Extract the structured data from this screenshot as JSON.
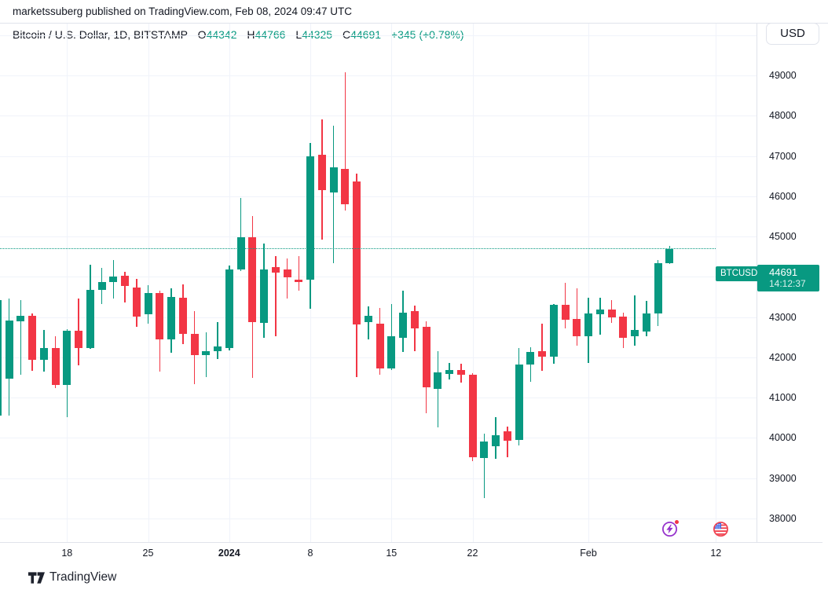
{
  "top_bar": {
    "attribution": "marketssuberg published on TradingView.com, Feb 08, 2024 09:47 UTC"
  },
  "header": {
    "symbol_title": "Bitcoin / U.S. Dollar, 1D, BITSTAMP",
    "ohlc": {
      "open_label": "O",
      "open": "44342",
      "high_label": "H",
      "high": "44766",
      "low_label": "L",
      "low": "44325",
      "close_label": "C",
      "close": "44691",
      "change": "+345 (+0.78%)"
    },
    "currency_button": "USD"
  },
  "chart_data": {
    "type": "candlestick",
    "symbol": "BTCUSD",
    "exchange": "BITSTAMP",
    "interval": "1D",
    "title": "Bitcoin / U.S. Dollar",
    "colors": {
      "up": "#089981",
      "down": "#f23645",
      "grid": "#f0f3fa",
      "price_line": "#089981"
    },
    "y_axis": {
      "tick_step": 1000,
      "labels": [
        49000,
        48000,
        47000,
        46000,
        45000,
        44000,
        43000,
        42000,
        41000,
        40000,
        39000,
        38000
      ],
      "gridline_prices": [
        50000,
        49000,
        48000,
        47000,
        46000,
        45000,
        44000,
        43000,
        42000,
        41000,
        40000,
        39000,
        38000
      ],
      "view_top_price": 50650,
      "view_bottom_price": 37350
    },
    "x_axis": {
      "ticks": [
        {
          "label": "18",
          "day": 5,
          "bold": false
        },
        {
          "label": "25",
          "day": 12,
          "bold": false
        },
        {
          "label": "2024",
          "day": 19,
          "bold": true
        },
        {
          "label": "8",
          "day": 26,
          "bold": false
        },
        {
          "label": "15",
          "day": 33,
          "bold": false
        },
        {
          "label": "22",
          "day": 40,
          "bold": false
        },
        {
          "label": "Feb",
          "day": 50,
          "bold": false
        },
        {
          "label": "12",
          "day": 61,
          "bold": false
        }
      ]
    },
    "price_line": {
      "price": 44691,
      "price_label": "44691",
      "countdown": "14:12:37",
      "symbol_label": "BTCUSD"
    },
    "candles_note": "arrays of [date, open, high, low, close]; first candle is clipped at left edge of viewport",
    "candles": [
      [
        "Dec 12",
        40550,
        43460,
        40520,
        43430
      ],
      [
        "Dec 13",
        41470,
        43460,
        40550,
        42910
      ],
      [
        "Dec 14",
        42900,
        43420,
        41560,
        43030
      ],
      [
        "Dec 15",
        43030,
        43100,
        41660,
        41940
      ],
      [
        "Dec 16",
        41940,
        42680,
        41650,
        42240
      ],
      [
        "Dec 17",
        42240,
        42520,
        41240,
        41320
      ],
      [
        "Dec 18",
        41320,
        42710,
        40510,
        42660
      ],
      [
        "Dec 19",
        42660,
        43470,
        41810,
        42240
      ],
      [
        "Dec 20",
        42240,
        44300,
        42210,
        43670
      ],
      [
        "Dec 21",
        43670,
        44230,
        43330,
        43870
      ],
      [
        "Dec 22",
        43870,
        44420,
        43450,
        44010
      ],
      [
        "Dec 23",
        44030,
        44120,
        43360,
        43770
      ],
      [
        "Dec 24",
        43740,
        43950,
        42760,
        43020
      ],
      [
        "Dec 25",
        43060,
        43800,
        42830,
        43600
      ],
      [
        "Dec 26",
        43600,
        43650,
        41650,
        42450
      ],
      [
        "Dec 27",
        42450,
        43720,
        42120,
        43500
      ],
      [
        "Dec 28",
        43480,
        43810,
        42330,
        42590
      ],
      [
        "Dec 29",
        42590,
        43140,
        41330,
        42050
      ],
      [
        "Dec 30",
        42060,
        42620,
        41510,
        42160
      ],
      [
        "Dec 31",
        42160,
        42880,
        41960,
        42280
      ],
      [
        "Jan 1",
        42240,
        44280,
        42180,
        44190
      ],
      [
        "Jan 2",
        44190,
        45950,
        44150,
        44990
      ],
      [
        "Jan 3",
        44990,
        45510,
        41480,
        42880
      ],
      [
        "Jan 4",
        42860,
        44830,
        42490,
        44190
      ],
      [
        "Jan 5",
        44240,
        44510,
        42520,
        44110
      ],
      [
        "Jan 6",
        44190,
        44450,
        43460,
        43980
      ],
      [
        "Jan 7",
        43920,
        44510,
        43660,
        43860
      ],
      [
        "Jan 8",
        43930,
        47330,
        43210,
        46990
      ],
      [
        "Jan 9",
        47040,
        47910,
        44920,
        46150
      ],
      [
        "Jan 10",
        46100,
        47750,
        44340,
        46710
      ],
      [
        "Jan 11",
        46680,
        49080,
        45650,
        45800
      ],
      [
        "Jan 12",
        46370,
        46560,
        41500,
        42810
      ],
      [
        "Jan 13",
        42880,
        43270,
        42450,
        43030
      ],
      [
        "Jan 14",
        42830,
        43230,
        41560,
        41730
      ],
      [
        "Jan 15",
        41730,
        43330,
        41680,
        42520
      ],
      [
        "Jan 16",
        42490,
        43660,
        42130,
        43120
      ],
      [
        "Jan 17",
        43140,
        43290,
        42160,
        42710
      ],
      [
        "Jan 18",
        42750,
        42890,
        40620,
        41250
      ],
      [
        "Jan 19",
        41220,
        42160,
        40260,
        41620
      ],
      [
        "Jan 20",
        41580,
        41870,
        41450,
        41680
      ],
      [
        "Jan 21",
        41690,
        41840,
        41380,
        41560
      ],
      [
        "Jan 22",
        41560,
        41600,
        39430,
        39520
      ],
      [
        "Jan 23",
        39500,
        40110,
        38510,
        39920
      ],
      [
        "Jan 24",
        39790,
        40520,
        39480,
        40070
      ],
      [
        "Jan 25",
        40160,
        40290,
        39530,
        39920
      ],
      [
        "Jan 26",
        39950,
        42240,
        39820,
        41820
      ],
      [
        "Jan 27",
        41820,
        42260,
        41400,
        42130
      ],
      [
        "Jan 28",
        42160,
        42840,
        41660,
        42010
      ],
      [
        "Jan 29",
        42020,
        43330,
        41840,
        43310
      ],
      [
        "Jan 30",
        43310,
        43850,
        42710,
        42930
      ],
      [
        "Jan 31",
        42960,
        43720,
        42290,
        42530
      ],
      [
        "Feb 1",
        42530,
        43480,
        41860,
        43090
      ],
      [
        "Feb 2",
        43070,
        43480,
        42570,
        43180
      ],
      [
        "Feb 3",
        43180,
        43430,
        42860,
        42990
      ],
      [
        "Feb 4",
        43010,
        43120,
        42240,
        42490
      ],
      [
        "Feb 5",
        42530,
        43540,
        42290,
        42680
      ],
      [
        "Feb 6",
        42650,
        43400,
        42530,
        43100
      ],
      [
        "Feb 7",
        43090,
        44420,
        42780,
        44340
      ],
      [
        "Feb 8",
        44342,
        44766,
        44325,
        44691
      ]
    ]
  },
  "events": [
    {
      "name": "crypto-event",
      "icon": "lightning-event-icon",
      "day": 57,
      "ring_color": "#9633cc",
      "has_alert_dot": true
    },
    {
      "name": "us-economic-event",
      "icon": "us-flag-event-icon",
      "day": 61.4,
      "ring_color": "#f04452",
      "has_alert_dot": false
    }
  ],
  "footer": {
    "brand": "TradingView"
  }
}
